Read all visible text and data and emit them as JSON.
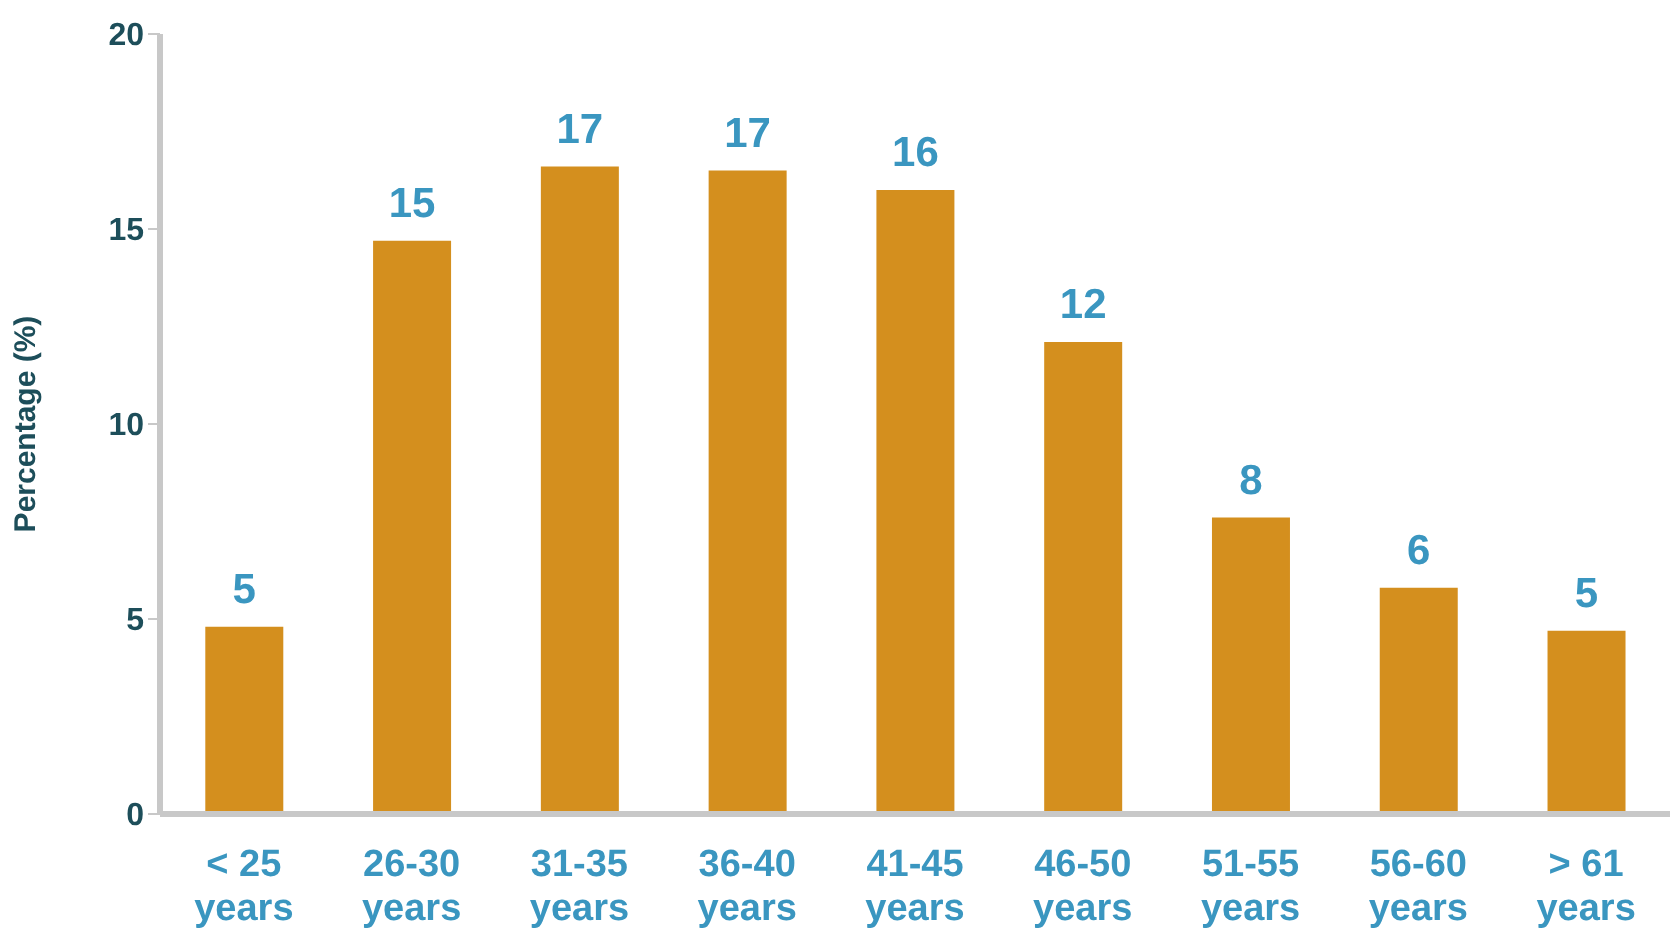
{
  "chart_data": {
    "type": "bar",
    "ylabel": "Percentage (%)",
    "categories": [
      "< 25 years",
      "26-30 years",
      "31-35 years",
      "36-40 years",
      "41-45 years",
      "46-50 years",
      "51-55 years",
      "56-60 years",
      "> 61 years"
    ],
    "values": [
      4.8,
      14.7,
      16.6,
      16.5,
      16.0,
      12.1,
      7.6,
      5.8,
      4.7
    ],
    "value_labels": [
      "5",
      "15",
      "17",
      "17",
      "16",
      "12",
      "8",
      "6",
      "5"
    ],
    "color": "#d48f1e",
    "ylim": [
      0,
      20
    ],
    "yticks": [
      0,
      5,
      10,
      15,
      20
    ],
    "grid": false,
    "legend": false
  }
}
